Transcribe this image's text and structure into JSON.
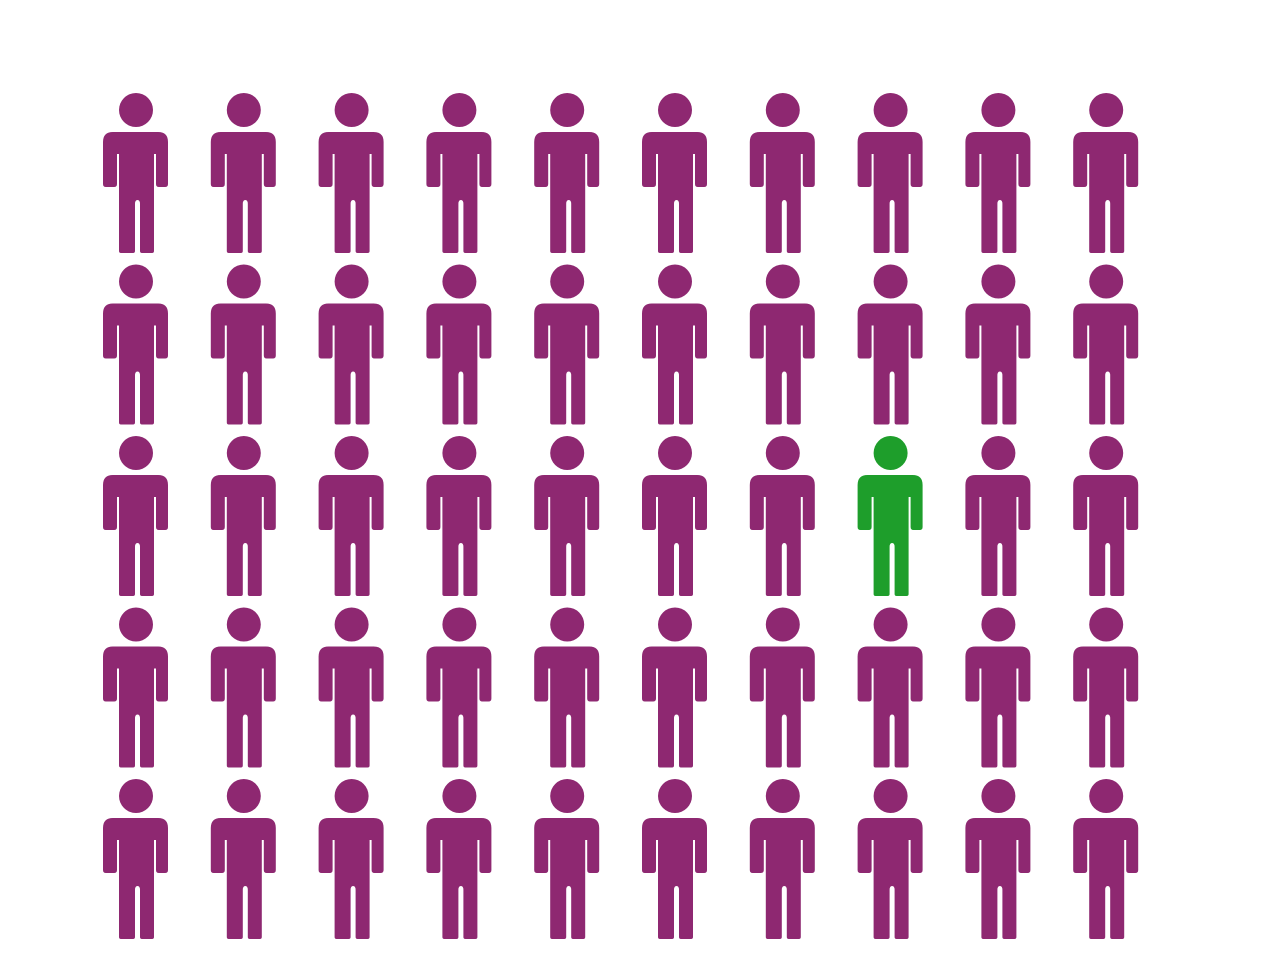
{
  "chart_data": {
    "type": "pictogram",
    "icon": "person-icon",
    "rows": 5,
    "columns": 10,
    "total": 50,
    "highlighted_count": 1,
    "highlighted_positions": [
      {
        "row": 3,
        "column": 8
      }
    ],
    "colors": {
      "default": "#8E2871",
      "highlight": "#1E9E2B"
    }
  }
}
